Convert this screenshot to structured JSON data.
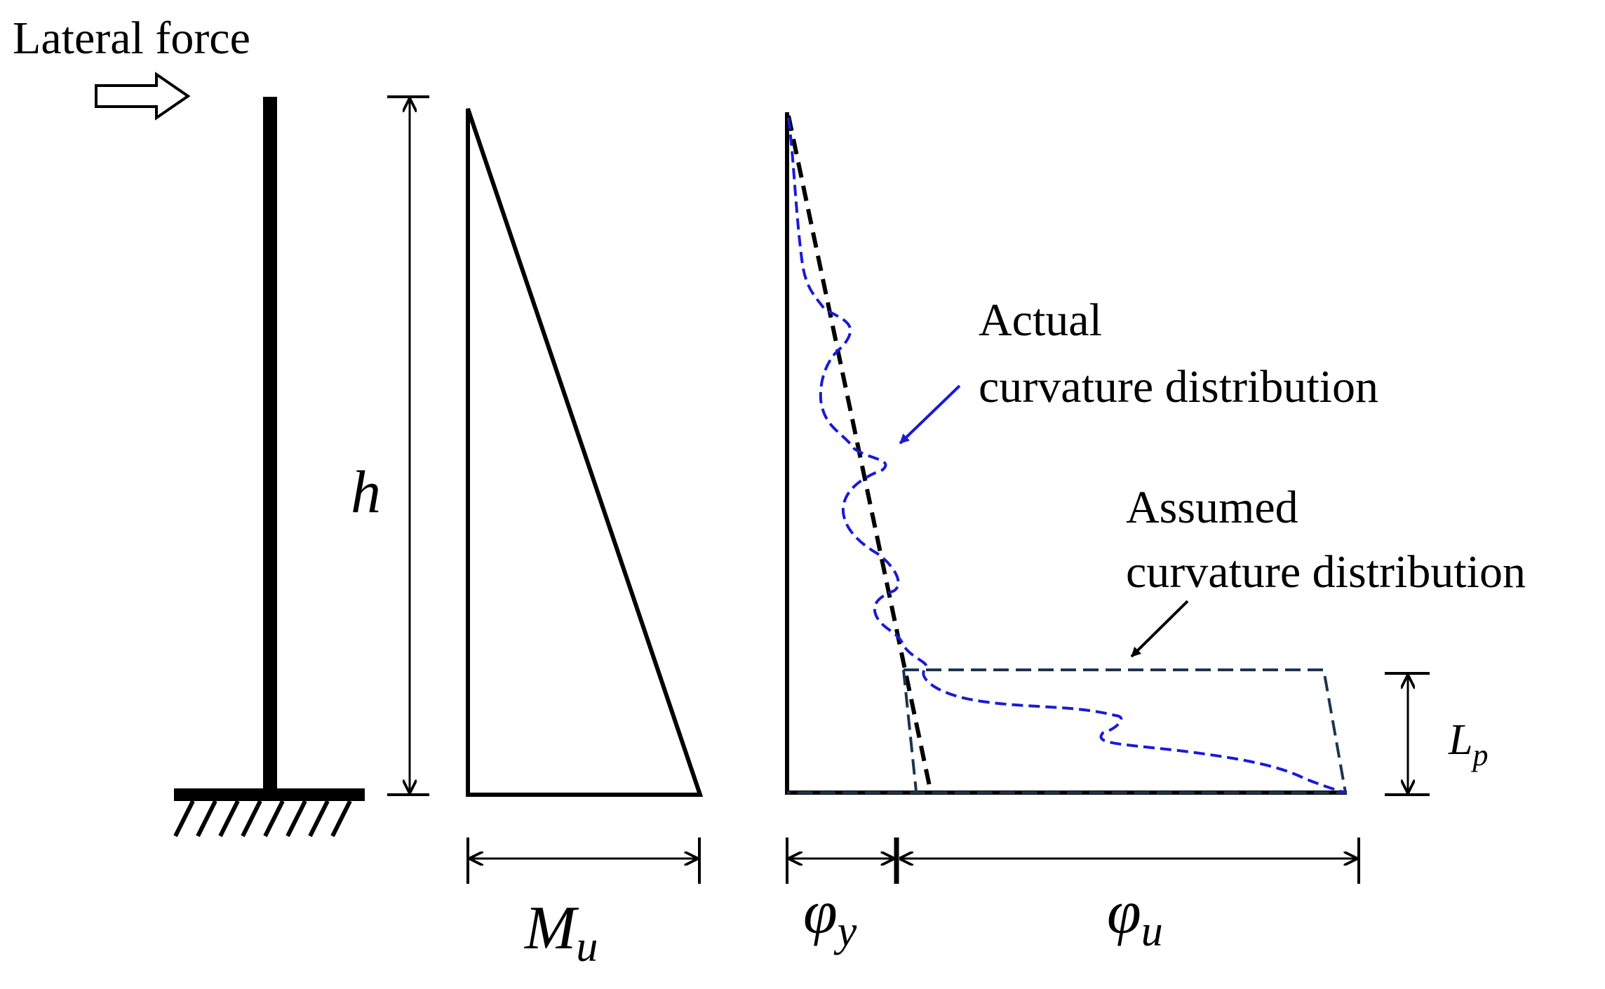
{
  "labels": {
    "lateral_force": "Lateral force",
    "height": "h",
    "moment_main": "M",
    "moment_sub": "u",
    "actual_line1": "Actual",
    "actual_line2": "curvature distribution",
    "assumed_line1": "Assumed",
    "assumed_line2": "curvature distribution",
    "phi_y_main": "φ",
    "phi_y_sub": "y",
    "phi_u_main": "φ",
    "phi_u_sub": "u",
    "lp_main": "L",
    "lp_sub": "p"
  },
  "colors": {
    "ink": "#000000",
    "actual_curve": "#1a1ad6",
    "assumed_curve": "#1c3550"
  },
  "icons": {
    "force_arrow": "hollow-right-arrow",
    "support": "fixed-base-hatch"
  }
}
